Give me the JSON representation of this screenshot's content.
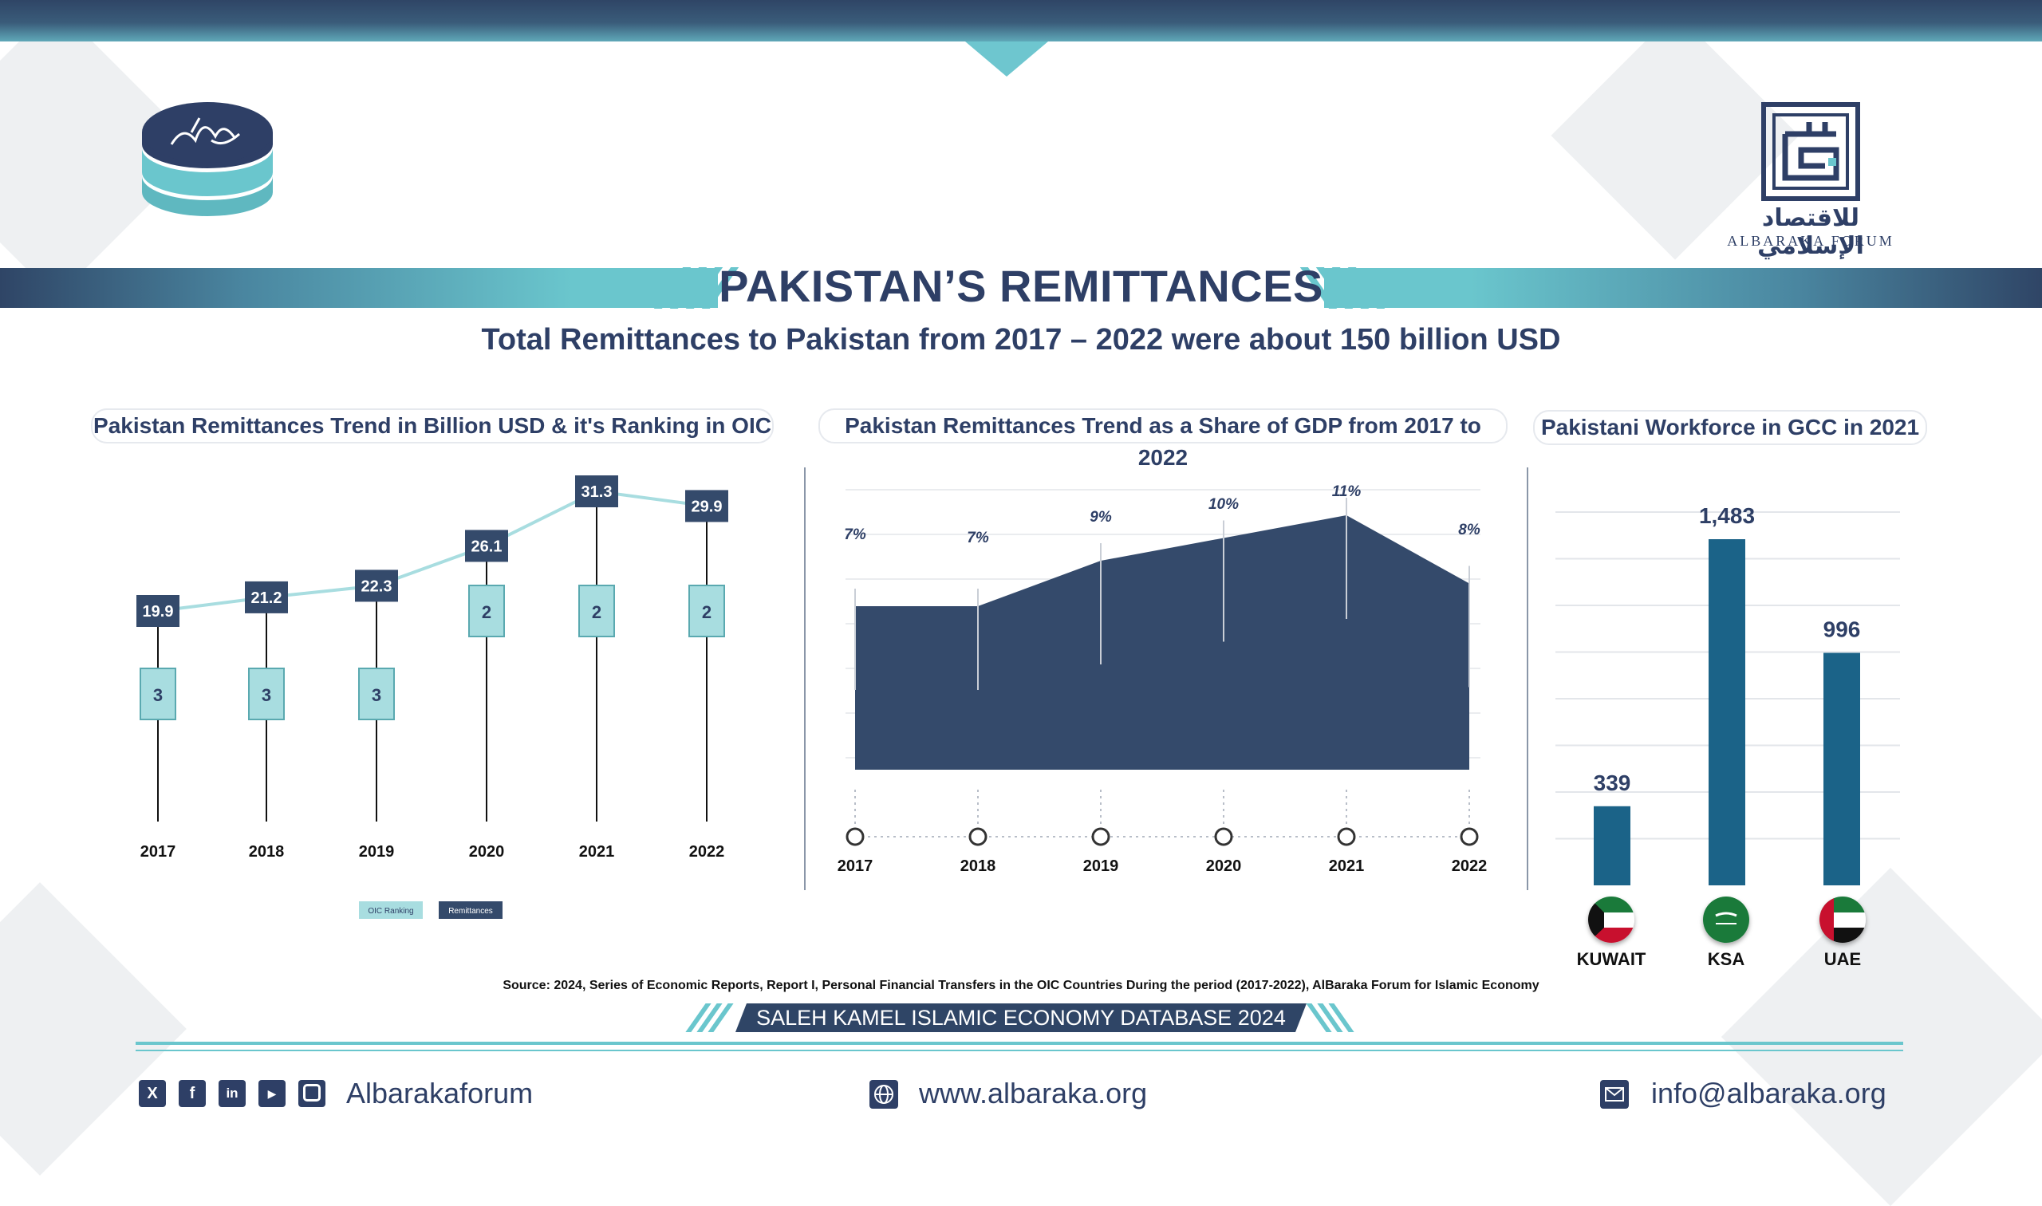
{
  "header": {
    "title": "PAKISTAN’S REMITTANCES",
    "subtitle": "Total Remittances to Pakistan from 2017 – 2022 were about 150 billion USD",
    "logo_right_arabic": "للاقتصاد الإسلامي",
    "logo_right_english": "ALBARAKA FORUM"
  },
  "colors": {
    "navy": "#2e3f66",
    "chart_navy": "#344a6b",
    "teal": "#a8dde0",
    "bar_blue": "#1b6388",
    "accent": "#6ac6cd"
  },
  "chart_data": [
    {
      "type": "line",
      "title": "Pakistan Remittances Trend in Billion USD & it's Ranking in OIC",
      "categories": [
        "2017",
        "2018",
        "2019",
        "2020",
        "2021",
        "2022"
      ],
      "series": [
        {
          "name": "Remittances",
          "values": [
            19.9,
            21.2,
            22.3,
            26.1,
            31.3,
            29.9
          ],
          "labels": [
            "19.9",
            "21.2",
            "22.3",
            "26.1",
            "31.3",
            "29.9"
          ]
        },
        {
          "name": "OIC Ranking",
          "values": [
            3,
            3,
            3,
            2,
            2,
            2
          ],
          "labels": [
            "3",
            "3",
            "3",
            "2",
            "2",
            "2"
          ]
        }
      ],
      "legend": "bottom"
    },
    {
      "type": "area",
      "title": "Pakistan Remittances Trend as a Share of GDP from 2017 to 2022",
      "categories": [
        "2017",
        "2018",
        "2019",
        "2020",
        "2021",
        "2022"
      ],
      "values": [
        7,
        7,
        9,
        10,
        11,
        8
      ],
      "labels": [
        "7%",
        "7%",
        "9%",
        "10%",
        "11%",
        "8%"
      ],
      "unit": "%"
    },
    {
      "type": "bar",
      "title": "Pakistani Workforce in GCC in 2021",
      "categories": [
        "KUWAIT",
        "KSA",
        "UAE"
      ],
      "values": [
        339,
        1483,
        996
      ],
      "labels": [
        "339",
        "1,483",
        "996"
      ],
      "grid": true
    }
  ],
  "footer": {
    "source": "Source: 2024, Series of Economic Reports, Report I, Personal Financial Transfers in the OIC Countries During the period (2017-2022), AlBaraka Forum for Islamic Economy",
    "database": "SALEH KAMEL ISLAMIC ECONOMY DATABASE 2024",
    "social_handle": "Albarakaforum",
    "website": "www.albaraka.org",
    "email": "info@albaraka.org",
    "social_icons": [
      "x-icon",
      "facebook-icon",
      "linkedin-icon",
      "youtube-icon",
      "instagram-icon"
    ]
  }
}
